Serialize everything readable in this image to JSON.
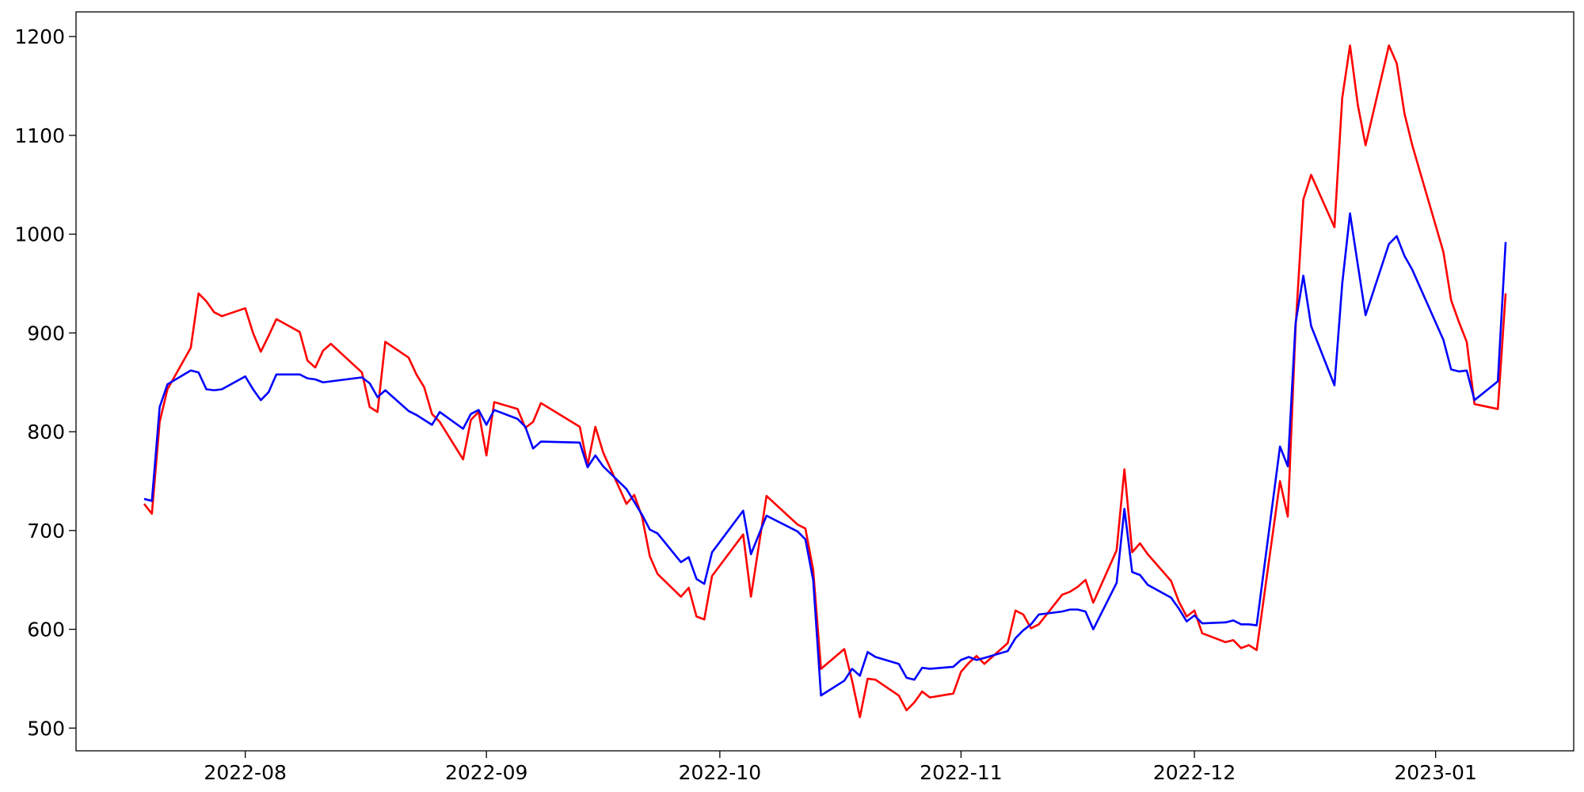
{
  "chart_data": {
    "type": "line",
    "x": [
      19192,
      19193,
      19194,
      19195,
      19198,
      19199,
      19200,
      19201,
      19202,
      19205,
      19206,
      19207,
      19208,
      19209,
      19212,
      19213,
      19214,
      19215,
      19216,
      19220,
      19221,
      19222,
      19223,
      19226,
      19227,
      19228,
      19229,
      19230,
      19233,
      19234,
      19235,
      19236,
      19237,
      19240,
      19241,
      19242,
      19243,
      19248,
      19249,
      19250,
      19251,
      19254,
      19255,
      19256,
      19257,
      19258,
      19261,
      19262,
      19263,
      19264,
      19265,
      19269,
      19270,
      19272,
      19276,
      19277,
      19278,
      19279,
      19282,
      19283,
      19284,
      19285,
      19286,
      19289,
      19290,
      19291,
      19292,
      19293,
      19296,
      19297,
      19298,
      19299,
      19300,
      19303,
      19304,
      19305,
      19306,
      19307,
      19310,
      19311,
      19312,
      19313,
      19314,
      19317,
      19318,
      19319,
      19320,
      19321,
      19324,
      19325,
      19326,
      19327,
      19328,
      19331,
      19332,
      19333,
      19334,
      19335,
      19338,
      19339,
      19340,
      19341,
      19342,
      19345,
      19346,
      19347,
      19348,
      19349,
      19352,
      19353,
      19354,
      19355,
      19359,
      19360,
      19361,
      19362,
      19363,
      19366,
      19367
    ],
    "series": [
      {
        "color": "red",
        "values": [
          727,
          717,
          810,
          843,
          885,
          940,
          932,
          921,
          917,
          925,
          900,
          881,
          897,
          914,
          901,
          872,
          865,
          882,
          889,
          860,
          825,
          820,
          891,
          875,
          858,
          845,
          818,
          810,
          772,
          812,
          820,
          776,
          830,
          823,
          804,
          810,
          829,
          805,
          766,
          805,
          779,
          727,
          736,
          714,
          674,
          656,
          633,
          642,
          613,
          610,
          654,
          696,
          633,
          735,
          706,
          702,
          660,
          560,
          580,
          548,
          511,
          550,
          549,
          533,
          518,
          526,
          537,
          531,
          535,
          557,
          566,
          573,
          565,
          586,
          619,
          615,
          601,
          605,
          635,
          638,
          643,
          650,
          627,
          680,
          762,
          678,
          687,
          676,
          649,
          628,
          613,
          619,
          596,
          587,
          589,
          581,
          584,
          579,
          750,
          714,
          905,
          1035,
          1060,
          1007,
          1138,
          1191,
          1131,
          1090,
          1191,
          1173,
          1122,
          1090,
          982,
          933,
          911,
          891,
          828,
          823,
          940
        ]
      },
      {
        "color": "blue",
        "values": [
          732,
          730,
          825,
          848,
          862,
          860,
          843,
          842,
          843,
          856,
          843,
          832,
          840,
          858,
          858,
          854,
          853,
          850,
          851,
          855,
          849,
          835,
          842,
          821,
          817,
          812,
          807,
          820,
          803,
          818,
          822,
          807,
          822,
          813,
          805,
          783,
          790,
          789,
          764,
          776,
          765,
          742,
          729,
          716,
          701,
          697,
          668,
          673,
          651,
          646,
          678,
          720,
          676,
          715,
          699,
          691,
          650,
          533,
          548,
          560,
          553,
          577,
          572,
          565,
          551,
          549,
          561,
          560,
          562,
          569,
          572,
          569,
          571,
          578,
          591,
          599,
          605,
          615,
          618,
          620,
          620,
          618,
          600,
          647,
          722,
          658,
          655,
          645,
          632,
          621,
          608,
          614,
          606,
          607,
          609,
          605,
          605,
          604,
          785,
          765,
          910,
          958,
          907,
          847,
          950,
          1021,
          969,
          918,
          990,
          998,
          978,
          964,
          893,
          863,
          861,
          862,
          832,
          851,
          992
        ]
      }
    ],
    "xlim": [
      19183.25,
      19375.75
    ],
    "xticks": [
      {
        "value": 19205,
        "label": "2022-08"
      },
      {
        "value": 19236,
        "label": "2022-09"
      },
      {
        "value": 19266,
        "label": "2022-10"
      },
      {
        "value": 19297,
        "label": "2022-11"
      },
      {
        "value": 19327,
        "label": "2022-12"
      },
      {
        "value": 19358,
        "label": "2023-01"
      }
    ],
    "ylim": [
      477,
      1225
    ],
    "yticks": [
      500,
      600,
      700,
      800,
      900,
      1000,
      1100,
      1200
    ],
    "grid": false
  }
}
